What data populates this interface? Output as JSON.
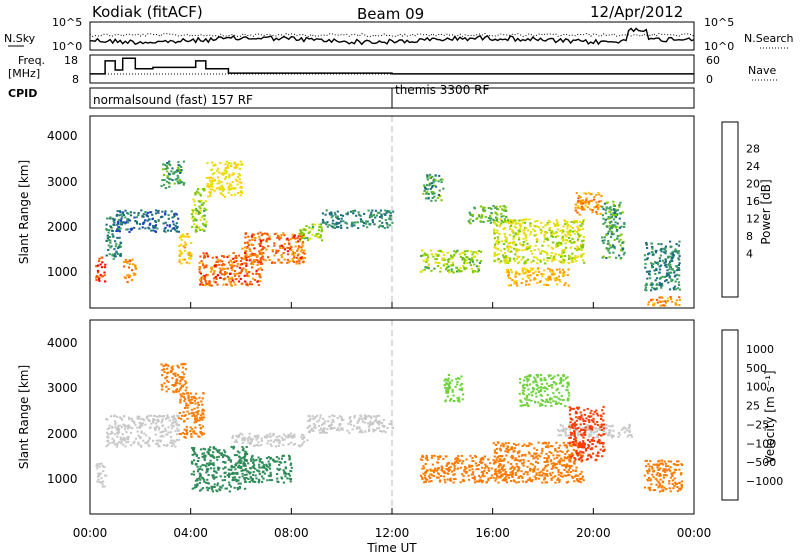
{
  "header": {
    "radar": "Kodiak (fitACF)",
    "beam": "Beam 09",
    "date": "12/Apr/2012"
  },
  "noise_panel": {
    "left_label": "N.Sky",
    "right_label": "N.Search",
    "left_ticks": [
      "10^5",
      "10^0"
    ],
    "right_ticks": [
      "10^5",
      "10^0"
    ]
  },
  "freq_panel": {
    "left_label_1": "Freq.",
    "left_label_2": "[MHz]",
    "left_ticks": [
      "18",
      "8"
    ],
    "right_ticks": [
      "60",
      "0"
    ],
    "right_label": "Nave",
    "freq_mhz": [
      {
        "t": 0.0,
        "v": 11.5
      },
      {
        "t": 0.6,
        "v": 11.5
      },
      {
        "t": 0.6,
        "v": 16.5
      },
      {
        "t": 1.0,
        "v": 16.5
      },
      {
        "t": 1.0,
        "v": 13.0
      },
      {
        "t": 1.3,
        "v": 13.0
      },
      {
        "t": 1.3,
        "v": 17.5
      },
      {
        "t": 1.8,
        "v": 17.5
      },
      {
        "t": 1.8,
        "v": 13.5
      },
      {
        "t": 2.5,
        "v": 13.5
      },
      {
        "t": 2.5,
        "v": 14.0
      },
      {
        "t": 4.2,
        "v": 14.0
      },
      {
        "t": 4.2,
        "v": 16.5
      },
      {
        "t": 4.6,
        "v": 16.5
      },
      {
        "t": 4.6,
        "v": 13.5
      },
      {
        "t": 5.5,
        "v": 13.5
      },
      {
        "t": 5.5,
        "v": 11.8
      },
      {
        "t": 12.0,
        "v": 11.8
      },
      {
        "t": 12.0,
        "v": 11.5
      },
      {
        "t": 24.0,
        "v": 11.5
      }
    ]
  },
  "cpid": {
    "label": "CPID",
    "segments": [
      "normalsound (fast) 157 RF",
      "themis 3300 RF"
    ],
    "boundary_hour": 12
  },
  "colorbars": {
    "power": {
      "label": "Power [dB]",
      "ticks": [
        "28",
        "24",
        "20",
        "16",
        "12",
        "8",
        "4"
      ],
      "colors": [
        "#ff0000",
        "#ff5a00",
        "#ff9a00",
        "#ffd000",
        "#dfe300",
        "#7ec900",
        "#3c9e5a",
        "#1c6e7e",
        "#1c3cc8",
        "#1010ff"
      ]
    },
    "velocity": {
      "label": "Velocity [m s⁻¹]",
      "ticks": [
        "1000",
        "500",
        "100",
        "25",
        "−25",
        "−100",
        "−500",
        "−1000"
      ],
      "colors": [
        "#1a30c8",
        "#1f6e6e",
        "#2e8b57",
        "#6fd23c",
        "#c8c8c8",
        "#ffb000",
        "#ff7a00",
        "#ff3a00",
        "#ee0000"
      ]
    }
  },
  "axes": {
    "ylabel": "Slant Range [km]",
    "yticks": [
      "4000",
      "3000",
      "2000",
      "1000"
    ],
    "xticks": [
      "00:00",
      "04:00",
      "08:00",
      "12:00",
      "16:00",
      "20:00",
      "00:00"
    ],
    "xlabel": "Time UT"
  },
  "chart_data": [
    {
      "type": "heatmap",
      "title": "",
      "quantity": "Power [dB]",
      "x_range_hours": [
        0,
        24
      ],
      "y_range_km": [
        180,
        4500
      ],
      "color_scale": [
        0,
        30
      ],
      "scatter_regions": [
        {
          "t0": 0.2,
          "t1": 0.6,
          "r0": 800,
          "r1": 1350,
          "level": 28
        },
        {
          "t0": 0.6,
          "t1": 1.2,
          "r0": 1300,
          "r1": 2300,
          "level": 8
        },
        {
          "t0": 1.3,
          "t1": 1.8,
          "r0": 750,
          "r1": 1300,
          "level": 24
        },
        {
          "t0": 1.0,
          "t1": 3.5,
          "r0": 1900,
          "r1": 2400,
          "level": 6
        },
        {
          "t0": 2.8,
          "t1": 3.7,
          "r0": 2900,
          "r1": 3500,
          "level": 10
        },
        {
          "t0": 3.5,
          "t1": 4.0,
          "r0": 1200,
          "r1": 1900,
          "level": 20
        },
        {
          "t0": 4.0,
          "t1": 4.6,
          "r0": 1900,
          "r1": 2900,
          "level": 14
        },
        {
          "t0": 4.6,
          "t1": 6.0,
          "r0": 2700,
          "r1": 3500,
          "level": 18
        },
        {
          "t0": 4.3,
          "t1": 6.8,
          "r0": 700,
          "r1": 1450,
          "level": 26
        },
        {
          "t0": 6.0,
          "t1": 8.5,
          "r0": 1200,
          "r1": 1900,
          "level": 26
        },
        {
          "t0": 8.3,
          "t1": 9.2,
          "r0": 1700,
          "r1": 2100,
          "level": 14
        },
        {
          "t0": 9.2,
          "t1": 12.0,
          "r0": 2000,
          "r1": 2400,
          "level": 8
        },
        {
          "t0": 13.2,
          "t1": 14.0,
          "r0": 2600,
          "r1": 3200,
          "level": 10
        },
        {
          "t0": 13.1,
          "t1": 15.5,
          "r0": 1000,
          "r1": 1500,
          "level": 14
        },
        {
          "t0": 15.0,
          "t1": 16.5,
          "r0": 2100,
          "r1": 2500,
          "level": 12
        },
        {
          "t0": 16.0,
          "t1": 19.6,
          "r0": 1200,
          "r1": 2200,
          "level": 16
        },
        {
          "t0": 16.5,
          "t1": 19.0,
          "r0": 700,
          "r1": 1100,
          "level": 22
        },
        {
          "t0": 19.2,
          "t1": 20.3,
          "r0": 2300,
          "r1": 2800,
          "level": 24
        },
        {
          "t0": 20.3,
          "t1": 21.2,
          "r0": 1300,
          "r1": 2600,
          "level": 10
        },
        {
          "t0": 22.0,
          "t1": 23.4,
          "r0": 600,
          "r1": 1700,
          "level": 8
        },
        {
          "t0": 22.0,
          "t1": 23.4,
          "r0": 250,
          "r1": 450,
          "level": 24
        }
      ]
    },
    {
      "type": "heatmap",
      "title": "",
      "quantity": "Velocity [m s⁻¹]",
      "x_range_hours": [
        0,
        24
      ],
      "y_range_km": [
        180,
        4500
      ],
      "color_scale": [
        -1000,
        1000
      ],
      "scatter_regions": [
        {
          "t0": 0.2,
          "t1": 0.6,
          "r0": 800,
          "r1": 1350,
          "level": 0
        },
        {
          "t0": 0.6,
          "t1": 3.5,
          "r0": 1700,
          "r1": 2400,
          "level": 0
        },
        {
          "t0": 2.8,
          "t1": 3.8,
          "r0": 2900,
          "r1": 3550,
          "level": -300
        },
        {
          "t0": 3.5,
          "t1": 4.5,
          "r0": 1900,
          "r1": 2900,
          "level": -150
        },
        {
          "t0": 4.0,
          "t1": 6.2,
          "r0": 700,
          "r1": 1700,
          "level": 300
        },
        {
          "t0": 5.6,
          "t1": 8.6,
          "r0": 1700,
          "r1": 2000,
          "level": 0
        },
        {
          "t0": 6.0,
          "t1": 8.0,
          "r0": 900,
          "r1": 1500,
          "level": 300
        },
        {
          "t0": 8.6,
          "t1": 12.0,
          "r0": 2000,
          "r1": 2400,
          "level": 0
        },
        {
          "t0": 14.0,
          "t1": 14.8,
          "r0": 2700,
          "r1": 3300,
          "level": 60
        },
        {
          "t0": 13.1,
          "t1": 16.5,
          "r0": 900,
          "r1": 1500,
          "level": -300
        },
        {
          "t0": 16.0,
          "t1": 19.6,
          "r0": 900,
          "r1": 1800,
          "level": -150
        },
        {
          "t0": 17.0,
          "t1": 19.0,
          "r0": 2600,
          "r1": 3300,
          "level": 60
        },
        {
          "t0": 18.5,
          "t1": 21.5,
          "r0": 1900,
          "r1": 2200,
          "level": 0
        },
        {
          "t0": 19.0,
          "t1": 20.4,
          "r0": 1400,
          "r1": 2600,
          "level": -700
        },
        {
          "t0": 22.0,
          "t1": 23.5,
          "r0": 700,
          "r1": 1400,
          "level": -150
        }
      ]
    }
  ]
}
